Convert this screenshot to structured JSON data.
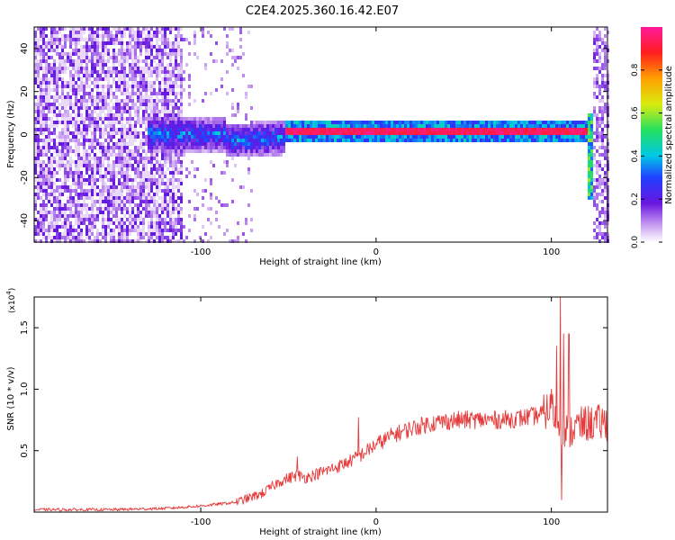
{
  "title": "C2E4.2025.360.16.42.E07",
  "chart_data": [
    {
      "type": "heatmap",
      "xlabel": "Height of straight line (km)",
      "ylabel": "Frequency (Hz)",
      "xlim": [
        -195,
        132
      ],
      "ylim": [
        -50,
        50
      ],
      "xticks": [
        -100,
        0,
        100
      ],
      "yticks": [
        -40,
        -20,
        0,
        20,
        40
      ],
      "colorbar": {
        "label": "Normalized spectral amplitude",
        "range": [
          0,
          1
        ],
        "ticks": [
          "0.0",
          "0.2",
          "0.4",
          "0.6",
          "0.8"
        ]
      },
      "ridge": {
        "description": "Dominant frequency band",
        "noisy_segment": {
          "x_start": -130,
          "x_end": -52,
          "freq_hz": [
            0,
            -5
          ],
          "amplitude": 0.35
        },
        "stable_segment": {
          "x_start": -52,
          "x_end": 120,
          "freq_hz": 1.5,
          "amplitude": 0.95
        },
        "end_spike": {
          "x": 122,
          "freq_range_hz": [
            -30,
            10
          ],
          "amplitude": 0.5
        }
      }
    },
    {
      "type": "line",
      "xlabel": "Height of straight line (km)",
      "ylabel": "SNR (10 * v/v)",
      "y_scale_label": "(x10",
      "y_scale_exp": "4",
      "y_scale_close": ")",
      "xlim": [
        -195,
        132
      ],
      "ylim": [
        0,
        1.75
      ],
      "xticks": [
        -100,
        0,
        100
      ],
      "yticks": [
        "0.5",
        "1.0",
        "1.5"
      ],
      "color": "#e53a3a",
      "series": [
        {
          "name": "SNR",
          "profile_x": [
            -195,
            -150,
            -120,
            -100,
            -80,
            -65,
            -55,
            -45,
            -40,
            -30,
            -20,
            -10,
            0,
            10,
            20,
            30,
            40,
            50,
            60,
            70,
            80,
            90,
            95,
            100,
            105,
            110,
            115,
            120,
            132
          ],
          "profile_y": [
            0.02,
            0.02,
            0.03,
            0.05,
            0.08,
            0.15,
            0.25,
            0.3,
            0.28,
            0.33,
            0.38,
            0.45,
            0.55,
            0.63,
            0.68,
            0.72,
            0.74,
            0.75,
            0.75,
            0.75,
            0.76,
            0.78,
            0.8,
            0.85,
            0.7,
            0.65,
            0.7,
            0.72,
            0.73
          ],
          "peaks": [
            {
              "x": 105,
              "y": 1.75
            },
            {
              "x": 103,
              "y": 1.35
            },
            {
              "x": 107,
              "y": 1.45
            },
            {
              "x": 110,
              "y": 1.45
            },
            {
              "x": 100,
              "y": 1.0
            },
            {
              "x": -10,
              "y": 0.77
            },
            {
              "x": -45,
              "y": 0.45
            },
            {
              "x": 106,
              "y": 0.1
            }
          ]
        }
      ]
    }
  ]
}
